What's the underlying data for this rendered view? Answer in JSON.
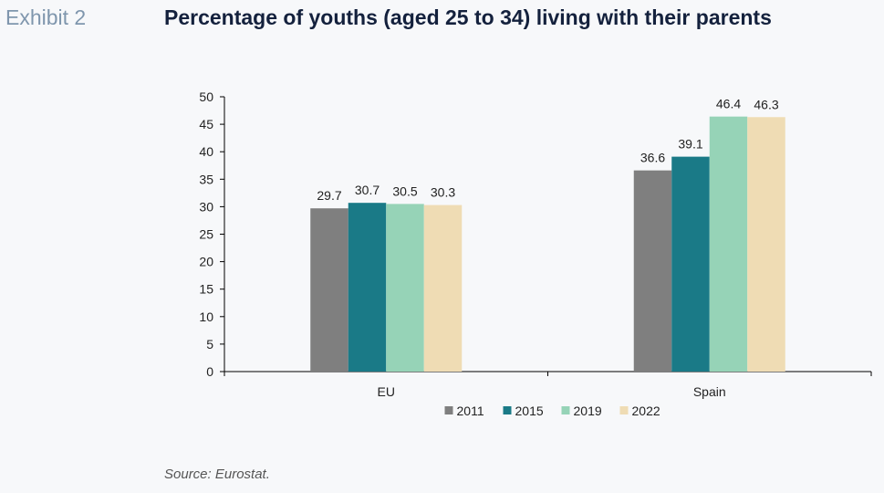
{
  "header": {
    "exhibit_label": "Exhibit 2",
    "title": "Percentage of youths (aged 25 to 34) living with their parents"
  },
  "footer": {
    "source": "Source: Eurostat."
  },
  "chart_data": {
    "type": "bar",
    "title": "Percentage of youths (aged 25 to 34) living with their parents",
    "xlabel": "",
    "ylabel": "",
    "categories": [
      "EU",
      "Spain"
    ],
    "ylim": [
      0,
      50
    ],
    "yticks": [
      0,
      5,
      10,
      15,
      20,
      25,
      30,
      35,
      40,
      45,
      50
    ],
    "grid": false,
    "legend_position": "bottom",
    "series": [
      {
        "name": "2011",
        "color": "#7f7f7f",
        "values": [
          29.7,
          36.6
        ]
      },
      {
        "name": "2015",
        "color": "#1a7a87",
        "values": [
          30.7,
          39.1
        ]
      },
      {
        "name": "2019",
        "color": "#96d3b7",
        "values": [
          30.5,
          46.4
        ]
      },
      {
        "name": "2022",
        "color": "#efdcb4",
        "values": [
          30.3,
          46.3
        ]
      }
    ]
  }
}
